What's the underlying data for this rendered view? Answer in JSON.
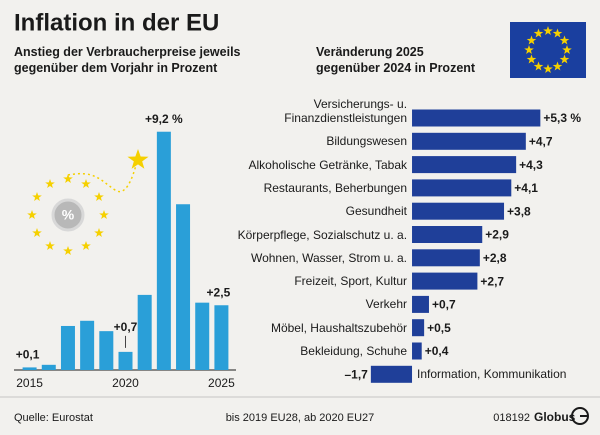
{
  "title": "Inflation in der EU",
  "chart_data": [
    {
      "type": "bar",
      "subtitle": "Anstieg der Verbraucherpreise jeweils\ngegenüber dem Vorjahr in Prozent",
      "categories": [
        "2015",
        null,
        null,
        null,
        null,
        "2020",
        null,
        null,
        null,
        null,
        "2025"
      ],
      "values": [
        0.1,
        0.2,
        1.7,
        1.9,
        1.5,
        0.7,
        2.9,
        9.2,
        6.4,
        2.6,
        2.5
      ],
      "value_labels": [
        "+0,1",
        null,
        null,
        null,
        null,
        "+0,7",
        null,
        "+9,2 %",
        null,
        null,
        "+2,5"
      ],
      "color": "#2a9fd8",
      "ylim": [
        0,
        10
      ]
    },
    {
      "type": "hbar",
      "subtitle": "Veränderung 2025\ngegenüber 2024 in Prozent",
      "categories": [
        "Versicherungs- u.\nFinanzdienstleistungen",
        "Bildungswesen",
        "Alkoholische Getränke, Tabak",
        "Restaurants, Beherbungen",
        "Gesundheit",
        "Körperpflege, Sozialschutz u. a.",
        "Wohnen, Wasser, Strom u. a.",
        "Freizeit, Sport, Kultur",
        "Verkehr",
        "Möbel, Haushaltszubehör",
        "Bekleidung, Schuhe",
        "Information, Kommunikation"
      ],
      "values": [
        5.3,
        4.7,
        4.3,
        4.1,
        3.8,
        2.9,
        2.8,
        2.7,
        0.7,
        0.5,
        0.4,
        -1.7
      ],
      "value_labels": [
        "+5,3 %",
        "+4,7",
        "+4,3",
        "+4,1",
        "+3,8",
        "+2,9",
        "+2,8",
        "+2,7",
        "+0,7",
        "+0,5",
        "+0,4",
        "–1,7"
      ],
      "color": "#1f3f99",
      "xlim": [
        -2,
        6
      ]
    }
  ],
  "footer": {
    "source": "Quelle: Eurostat",
    "note": "bis 2019 EU28, ab 2020 EU27",
    "code": "018192",
    "brand": "Globus"
  }
}
